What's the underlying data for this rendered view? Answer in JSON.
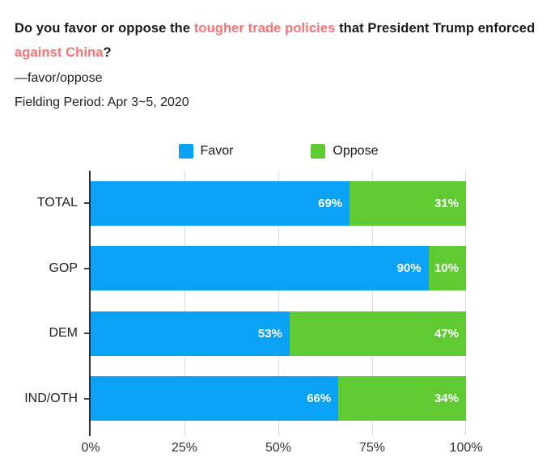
{
  "header": {
    "question": {
      "segments": [
        {
          "text": "Do you favor or oppose the ",
          "highlight": false
        },
        {
          "text": "tougher trade policies",
          "highlight": true
        },
        {
          "text": " that President Trump enforced ",
          "highlight": false
        },
        {
          "text": "against China",
          "highlight": true
        },
        {
          "text": "?",
          "highlight": false
        }
      ],
      "highlight_color": "#f87373"
    },
    "subtitle": "—favor/oppose",
    "fielding_period": "Fielding Period: Apr 3~5, 2020"
  },
  "legend": {
    "items": [
      {
        "label": "Favor",
        "color": "#0aa2f4"
      },
      {
        "label": "Oppose",
        "color": "#5fca32"
      }
    ],
    "position": "top"
  },
  "chart_data": {
    "type": "bar",
    "orientation": "horizontal",
    "stacked": true,
    "categories": [
      "TOTAL",
      "GOP",
      "DEM",
      "IND/OTH"
    ],
    "series": [
      {
        "name": "Favor",
        "color": "#0aa2f4",
        "values": [
          69,
          90,
          53,
          66
        ]
      },
      {
        "name": "Oppose",
        "color": "#5fca32",
        "values": [
          31,
          10,
          47,
          34
        ]
      }
    ],
    "value_suffix": "%",
    "value_label_color": "#ffffff",
    "x_ticks": [
      "0%",
      "25%",
      "50%",
      "75%",
      "100%"
    ],
    "xlim": [
      0,
      100
    ],
    "grid": true,
    "gridline_color": "#dcdcdc",
    "axis_color": "#2b2b2b",
    "legend_position": "top"
  }
}
